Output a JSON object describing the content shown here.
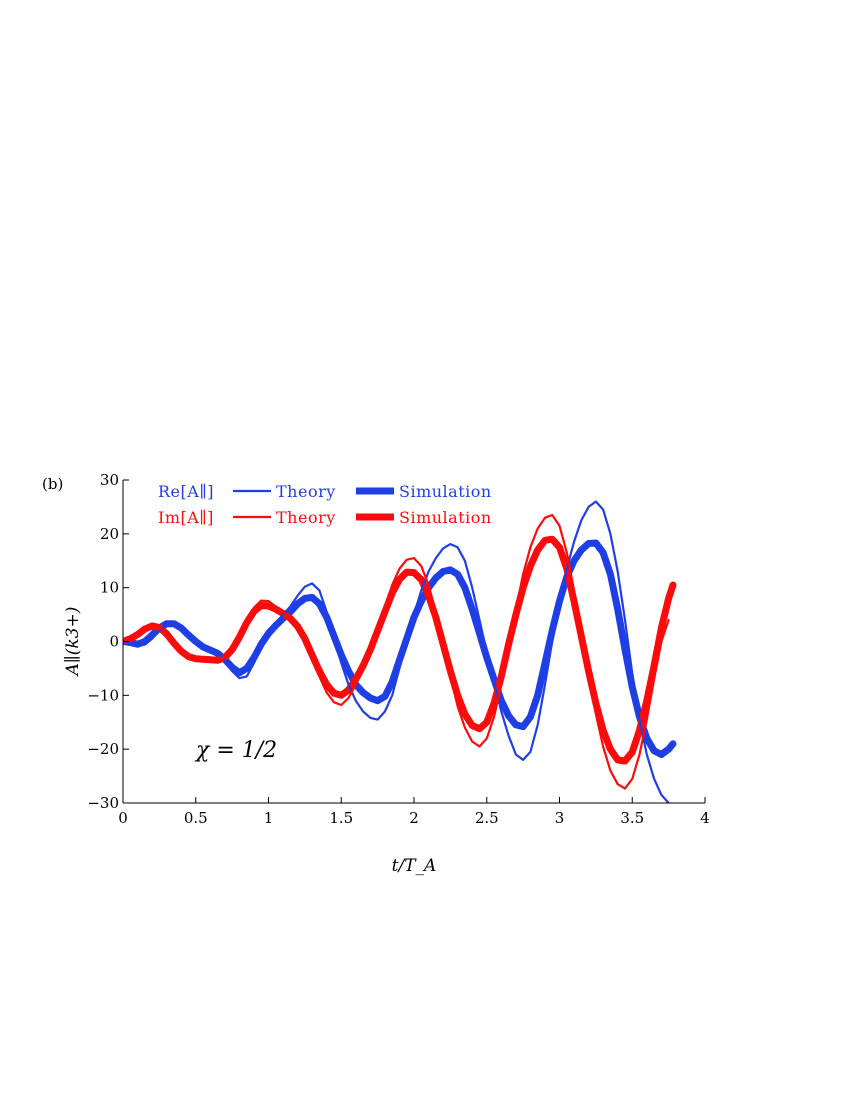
{
  "panel_label": "(b)",
  "annotation": "χ = 1/2",
  "legend": {
    "re_label": "Re[A∥]",
    "im_label": "Im[A∥]",
    "theory_label": "Theory",
    "simulation_label": "Simulation"
  },
  "colors": {
    "re": "#1f3fe6",
    "im": "#ff0a0a",
    "axis": "#000000"
  },
  "chart_data": {
    "type": "line",
    "title": "",
    "xlabel": "t/T_A",
    "ylabel": "A∥(k3+)",
    "xlim": [
      0,
      4
    ],
    "ylim": [
      -30,
      30
    ],
    "xticks": [
      0,
      0.5,
      1,
      1.5,
      2,
      2.5,
      3,
      3.5,
      4
    ],
    "xtick_labels": [
      "0",
      "0.5",
      "1",
      "1.5",
      "2",
      "2.5",
      "3",
      "3.5",
      "4"
    ],
    "yticks": [
      30,
      20,
      10,
      0,
      -10,
      -20,
      -30
    ],
    "ytick_labels": [
      "30",
      "20",
      "10",
      "0",
      "−10",
      "−20",
      "−30"
    ],
    "grid": false,
    "legend_position": "top-left",
    "series": [
      {
        "name": "Re[A∥] Theory",
        "component": "re",
        "style": "thin",
        "points": [
          [
            0,
            0
          ],
          [
            0.05,
            -0.3
          ],
          [
            0.1,
            -0.8
          ],
          [
            0.15,
            -0.6
          ],
          [
            0.2,
            0.5
          ],
          [
            0.25,
            2
          ],
          [
            0.3,
            3.3
          ],
          [
            0.35,
            3.6
          ],
          [
            0.4,
            2.8
          ],
          [
            0.45,
            1.5
          ],
          [
            0.5,
            0
          ],
          [
            0.55,
            -1
          ],
          [
            0.6,
            -1.5
          ],
          [
            0.65,
            -2
          ],
          [
            0.7,
            -3.5
          ],
          [
            0.75,
            -5.5
          ],
          [
            0.8,
            -6.8
          ],
          [
            0.85,
            -6.5
          ],
          [
            0.9,
            -4
          ],
          [
            0.95,
            -1
          ],
          [
            1,
            1.5
          ],
          [
            1.05,
            3.5
          ],
          [
            1.1,
            5
          ],
          [
            1.15,
            6.5
          ],
          [
            1.2,
            8.5
          ],
          [
            1.25,
            10.2
          ],
          [
            1.3,
            10.8
          ],
          [
            1.35,
            9.5
          ],
          [
            1.4,
            5.5
          ],
          [
            1.45,
            0.5
          ],
          [
            1.5,
            -4
          ],
          [
            1.55,
            -8
          ],
          [
            1.6,
            -11
          ],
          [
            1.65,
            -13
          ],
          [
            1.7,
            -14.2
          ],
          [
            1.75,
            -14.5
          ],
          [
            1.8,
            -13
          ],
          [
            1.85,
            -10
          ],
          [
            1.9,
            -5
          ],
          [
            1.95,
            0
          ],
          [
            2,
            5
          ],
          [
            2.05,
            9.5
          ],
          [
            2.1,
            13
          ],
          [
            2.15,
            15.5
          ],
          [
            2.2,
            17.3
          ],
          [
            2.25,
            18.1
          ],
          [
            2.3,
            17.5
          ],
          [
            2.35,
            15
          ],
          [
            2.4,
            10
          ],
          [
            2.45,
            4
          ],
          [
            2.5,
            -2
          ],
          [
            2.55,
            -7.5
          ],
          [
            2.6,
            -13
          ],
          [
            2.65,
            -17.5
          ],
          [
            2.7,
            -21
          ],
          [
            2.75,
            -22
          ],
          [
            2.8,
            -20.5
          ],
          [
            2.85,
            -15.5
          ],
          [
            2.9,
            -8
          ],
          [
            2.95,
            0
          ],
          [
            3,
            7
          ],
          [
            3.05,
            13.5
          ],
          [
            3.1,
            18.5
          ],
          [
            3.15,
            22.5
          ],
          [
            3.2,
            25
          ],
          [
            3.25,
            26
          ],
          [
            3.3,
            24.5
          ],
          [
            3.35,
            20
          ],
          [
            3.4,
            13
          ],
          [
            3.45,
            4
          ],
          [
            3.5,
            -6
          ],
          [
            3.55,
            -14.5
          ],
          [
            3.6,
            -21
          ],
          [
            3.65,
            -25.5
          ],
          [
            3.7,
            -28.5
          ],
          [
            3.75,
            -30
          ]
        ]
      },
      {
        "name": "Re[A∥] Simulation",
        "component": "re",
        "style": "thick",
        "points": [
          [
            0,
            0
          ],
          [
            0.05,
            -0.2
          ],
          [
            0.1,
            -0.5
          ],
          [
            0.15,
            0
          ],
          [
            0.2,
            1.2
          ],
          [
            0.25,
            2.5
          ],
          [
            0.3,
            3.3
          ],
          [
            0.35,
            3.3
          ],
          [
            0.4,
            2.5
          ],
          [
            0.45,
            1.2
          ],
          [
            0.5,
            0
          ],
          [
            0.55,
            -1
          ],
          [
            0.6,
            -1.6
          ],
          [
            0.65,
            -2.2
          ],
          [
            0.7,
            -3.3
          ],
          [
            0.75,
            -4.8
          ],
          [
            0.8,
            -5.8
          ],
          [
            0.85,
            -5
          ],
          [
            0.9,
            -3
          ],
          [
            0.95,
            -0.5
          ],
          [
            1,
            1.5
          ],
          [
            1.05,
            3
          ],
          [
            1.1,
            4.3
          ],
          [
            1.15,
            5.5
          ],
          [
            1.2,
            7
          ],
          [
            1.25,
            8
          ],
          [
            1.3,
            8.2
          ],
          [
            1.35,
            7
          ],
          [
            1.4,
            4.5
          ],
          [
            1.45,
            1
          ],
          [
            1.5,
            -2.5
          ],
          [
            1.55,
            -5.5
          ],
          [
            1.6,
            -8
          ],
          [
            1.65,
            -9.5
          ],
          [
            1.7,
            -10.5
          ],
          [
            1.75,
            -11
          ],
          [
            1.8,
            -10.2
          ],
          [
            1.85,
            -7.5
          ],
          [
            1.9,
            -3.5
          ],
          [
            1.95,
            0.5
          ],
          [
            2,
            4.5
          ],
          [
            2.05,
            7.5
          ],
          [
            2.1,
            10
          ],
          [
            2.15,
            11.8
          ],
          [
            2.2,
            13
          ],
          [
            2.25,
            13.3
          ],
          [
            2.3,
            12.5
          ],
          [
            2.35,
            10
          ],
          [
            2.4,
            6
          ],
          [
            2.45,
            1.5
          ],
          [
            2.5,
            -3
          ],
          [
            2.55,
            -7
          ],
          [
            2.6,
            -11
          ],
          [
            2.65,
            -13.8
          ],
          [
            2.7,
            -15.5
          ],
          [
            2.75,
            -15.8
          ],
          [
            2.8,
            -14
          ],
          [
            2.85,
            -10
          ],
          [
            2.9,
            -4
          ],
          [
            2.95,
            2
          ],
          [
            3,
            7.5
          ],
          [
            3.05,
            12
          ],
          [
            3.1,
            15
          ],
          [
            3.15,
            17
          ],
          [
            3.2,
            18.2
          ],
          [
            3.25,
            18.3
          ],
          [
            3.3,
            16.5
          ],
          [
            3.35,
            12.5
          ],
          [
            3.4,
            6
          ],
          [
            3.45,
            -1.5
          ],
          [
            3.5,
            -8.5
          ],
          [
            3.55,
            -14
          ],
          [
            3.6,
            -18
          ],
          [
            3.65,
            -20.3
          ],
          [
            3.7,
            -21
          ],
          [
            3.75,
            -20
          ],
          [
            3.78,
            -19
          ]
        ]
      },
      {
        "name": "Im[A∥] Theory",
        "component": "im",
        "style": "thin",
        "points": [
          [
            0,
            0
          ],
          [
            0.05,
            0.6
          ],
          [
            0.1,
            1.5
          ],
          [
            0.15,
            2.6
          ],
          [
            0.2,
            3.1
          ],
          [
            0.25,
            2.8
          ],
          [
            0.3,
            1.5
          ],
          [
            0.35,
            -0.2
          ],
          [
            0.4,
            -1.7
          ],
          [
            0.45,
            -2.8
          ],
          [
            0.5,
            -3.2
          ],
          [
            0.55,
            -3.3
          ],
          [
            0.6,
            -3.4
          ],
          [
            0.65,
            -3.5
          ],
          [
            0.7,
            -3
          ],
          [
            0.75,
            -1.5
          ],
          [
            0.8,
            1
          ],
          [
            0.85,
            3.8
          ],
          [
            0.9,
            6.3
          ],
          [
            0.95,
            7.6
          ],
          [
            1,
            7.5
          ],
          [
            1.05,
            6.5
          ],
          [
            1.1,
            5.5
          ],
          [
            1.15,
            4.5
          ],
          [
            1.2,
            3
          ],
          [
            1.25,
            0.5
          ],
          [
            1.3,
            -3
          ],
          [
            1.35,
            -6.5
          ],
          [
            1.4,
            -9.5
          ],
          [
            1.45,
            -11.3
          ],
          [
            1.5,
            -11.8
          ],
          [
            1.55,
            -10.5
          ],
          [
            1.6,
            -8
          ],
          [
            1.65,
            -5
          ],
          [
            1.7,
            -1.5
          ],
          [
            1.75,
            2.5
          ],
          [
            1.8,
            6.5
          ],
          [
            1.85,
            10.5
          ],
          [
            1.9,
            13.5
          ],
          [
            1.95,
            15.2
          ],
          [
            2,
            15.5
          ],
          [
            2.05,
            14
          ],
          [
            2.1,
            10.5
          ],
          [
            2.15,
            5.5
          ],
          [
            2.2,
            -0.5
          ],
          [
            2.25,
            -6.5
          ],
          [
            2.3,
            -12
          ],
          [
            2.35,
            -16
          ],
          [
            2.4,
            -18.6
          ],
          [
            2.45,
            -19.5
          ],
          [
            2.5,
            -18
          ],
          [
            2.55,
            -14
          ],
          [
            2.6,
            -8
          ],
          [
            2.65,
            -1
          ],
          [
            2.7,
            6
          ],
          [
            2.75,
            12.5
          ],
          [
            2.8,
            17.5
          ],
          [
            2.85,
            21
          ],
          [
            2.9,
            23
          ],
          [
            2.95,
            23.5
          ],
          [
            3,
            21.5
          ],
          [
            3.05,
            16.5
          ],
          [
            3.1,
            9.5
          ],
          [
            3.15,
            1.5
          ],
          [
            3.2,
            -6.5
          ],
          [
            3.25,
            -13.5
          ],
          [
            3.3,
            -19.5
          ],
          [
            3.35,
            -24
          ],
          [
            3.4,
            -26.5
          ],
          [
            3.45,
            -27.3
          ],
          [
            3.5,
            -25.5
          ],
          [
            3.55,
            -21
          ],
          [
            3.6,
            -14.5
          ],
          [
            3.65,
            -7
          ],
          [
            3.7,
            0
          ],
          [
            3.75,
            4
          ]
        ]
      },
      {
        "name": "Im[A∥] Simulation",
        "component": "im",
        "style": "thick",
        "points": [
          [
            0,
            0
          ],
          [
            0.05,
            0.5
          ],
          [
            0.1,
            1.3
          ],
          [
            0.15,
            2.3
          ],
          [
            0.2,
            2.9
          ],
          [
            0.25,
            2.6
          ],
          [
            0.3,
            1.4
          ],
          [
            0.35,
            -0.3
          ],
          [
            0.4,
            -1.8
          ],
          [
            0.45,
            -2.8
          ],
          [
            0.5,
            -3.2
          ],
          [
            0.55,
            -3.3
          ],
          [
            0.6,
            -3.4
          ],
          [
            0.65,
            -3.5
          ],
          [
            0.7,
            -3
          ],
          [
            0.75,
            -1.5
          ],
          [
            0.8,
            0.8
          ],
          [
            0.85,
            3.5
          ],
          [
            0.9,
            5.6
          ],
          [
            0.95,
            6.7
          ],
          [
            1,
            6.6
          ],
          [
            1.05,
            6
          ],
          [
            1.1,
            5.2
          ],
          [
            1.15,
            4.3
          ],
          [
            1.2,
            2.8
          ],
          [
            1.25,
            0.5
          ],
          [
            1.3,
            -2.5
          ],
          [
            1.35,
            -5.5
          ],
          [
            1.4,
            -8
          ],
          [
            1.45,
            -9.6
          ],
          [
            1.5,
            -10
          ],
          [
            1.55,
            -9
          ],
          [
            1.6,
            -7
          ],
          [
            1.65,
            -4.5
          ],
          [
            1.7,
            -1.5
          ],
          [
            1.75,
            2
          ],
          [
            1.8,
            5.5
          ],
          [
            1.85,
            9
          ],
          [
            1.9,
            11.5
          ],
          [
            1.95,
            12.9
          ],
          [
            2,
            12.8
          ],
          [
            2.05,
            11.5
          ],
          [
            2.1,
            8.5
          ],
          [
            2.15,
            4.5
          ],
          [
            2.2,
            -0.5
          ],
          [
            2.25,
            -5.5
          ],
          [
            2.3,
            -10
          ],
          [
            2.35,
            -13.5
          ],
          [
            2.4,
            -15.6
          ],
          [
            2.45,
            -16.2
          ],
          [
            2.5,
            -15
          ],
          [
            2.55,
            -11.5
          ],
          [
            2.6,
            -6.5
          ],
          [
            2.65,
            -0.5
          ],
          [
            2.7,
            5
          ],
          [
            2.75,
            10
          ],
          [
            2.8,
            14
          ],
          [
            2.85,
            17
          ],
          [
            2.9,
            18.8
          ],
          [
            2.95,
            19
          ],
          [
            3,
            17.5
          ],
          [
            3.05,
            13.5
          ],
          [
            3.1,
            7.5
          ],
          [
            3.15,
            1
          ],
          [
            3.2,
            -5.5
          ],
          [
            3.25,
            -11.5
          ],
          [
            3.3,
            -16.5
          ],
          [
            3.35,
            -20
          ],
          [
            3.4,
            -22
          ],
          [
            3.45,
            -22.2
          ],
          [
            3.5,
            -20.5
          ],
          [
            3.55,
            -16.5
          ],
          [
            3.6,
            -11
          ],
          [
            3.65,
            -4.5
          ],
          [
            3.7,
            2.5
          ],
          [
            3.75,
            8
          ],
          [
            3.78,
            10.5
          ]
        ]
      }
    ]
  }
}
